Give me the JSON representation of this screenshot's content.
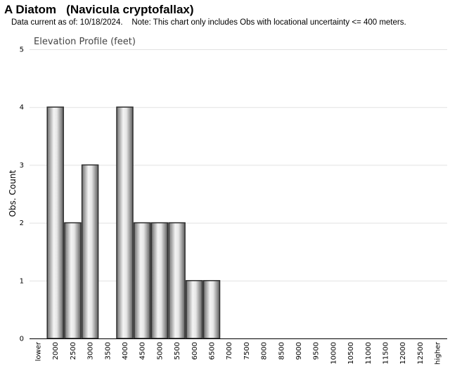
{
  "header": {
    "title": "A Diatom   (Navicula cryptofallax)",
    "note": "Data current as of: 10/18/2024.    Note: This chart only includes Obs with locational uncertainty <= 400 meters."
  },
  "chart_data": {
    "type": "bar",
    "title": "Elevation Profile (feet)",
    "xlabel": "",
    "ylabel": "Obs. Count",
    "ylim": [
      0,
      5
    ],
    "yticks": [
      0,
      1,
      2,
      3,
      4,
      5
    ],
    "grid": true,
    "categories": [
      "lower",
      "2000",
      "2500",
      "3000",
      "3500",
      "4000",
      "4500",
      "5000",
      "5500",
      "6000",
      "6500",
      "7000",
      "7500",
      "8000",
      "8500",
      "9000",
      "9500",
      "10000",
      "10500",
      "11000",
      "11500",
      "12000",
      "12500",
      "higher"
    ],
    "values": [
      0,
      4,
      2,
      3,
      0,
      4,
      2,
      2,
      2,
      1,
      1,
      0,
      0,
      0,
      0,
      0,
      0,
      0,
      0,
      0,
      0,
      0,
      0,
      0
    ],
    "bar_color": "#b4b4b4",
    "bar_edge_color": "#2e2e2e"
  }
}
